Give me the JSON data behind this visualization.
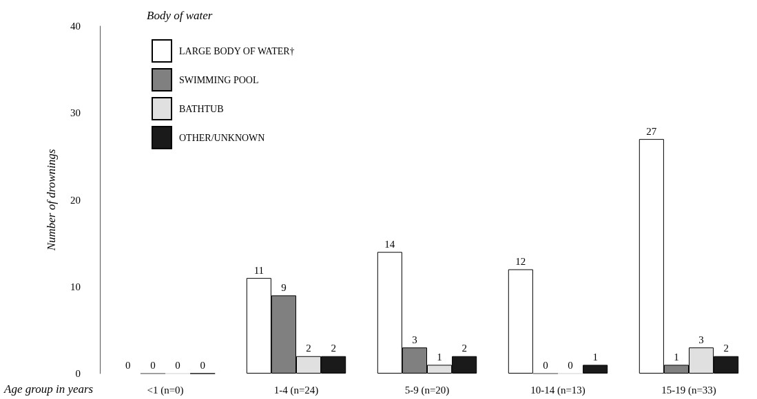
{
  "chart_data": {
    "type": "bar",
    "xlabel": "Age group in years",
    "ylabel": "Number of drownings",
    "legend_title": "Body of water",
    "categories": [
      "<1 (n=0)",
      "1-4 (n=24)",
      "5-9 (n=20)",
      "10-14 (n=13)",
      "15-19 (n=33)"
    ],
    "series": [
      {
        "name": "LARGE BODY OF WATER†",
        "color": "#ffffff",
        "values": [
          0,
          11,
          14,
          12,
          27
        ]
      },
      {
        "name": "SWIMMING POOL",
        "color": "#808080",
        "values": [
          0,
          9,
          3,
          0,
          1
        ]
      },
      {
        "name": "BATHTUB",
        "color": "#e0e0e0",
        "values": [
          0,
          2,
          1,
          0,
          3
        ]
      },
      {
        "name": "OTHER/UNKNOWN",
        "color": "#1a1a1a",
        "values": [
          0,
          2,
          2,
          1,
          2
        ]
      }
    ],
    "ylim": [
      0,
      40
    ],
    "yticks": [
      0,
      10,
      20,
      30,
      40
    ],
    "grid": false,
    "legend": "top left",
    "data_labels": true
  }
}
